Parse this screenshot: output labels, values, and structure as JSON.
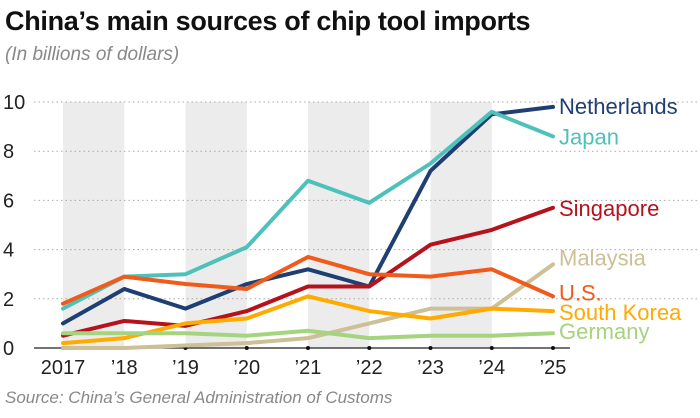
{
  "chart_data": {
    "type": "line",
    "title": "China’s main sources of chip tool imports",
    "subtitle": "(In billions of dollars)",
    "source": "Source: China’s General Administration of Customs",
    "x": [
      "2017",
      "’18",
      "’19",
      "’20",
      "’21",
      "’22",
      "’23",
      "’24",
      "’25"
    ],
    "ylim": [
      0,
      10
    ],
    "yticks": [
      0,
      2,
      4,
      6,
      8,
      10
    ],
    "grid": true,
    "series": [
      {
        "name": "Netherlands",
        "color": "#1f3f73",
        "values": [
          1.0,
          2.4,
          1.6,
          2.6,
          3.2,
          2.5,
          7.2,
          9.5,
          9.8
        ]
      },
      {
        "name": "Japan",
        "color": "#4fc1bb",
        "values": [
          1.6,
          2.9,
          3.0,
          4.1,
          6.8,
          5.9,
          7.5,
          9.6,
          8.6
        ]
      },
      {
        "name": "Singapore",
        "color": "#b5121b",
        "values": [
          0.5,
          1.1,
          0.9,
          1.5,
          2.5,
          2.5,
          4.2,
          4.8,
          5.7
        ]
      },
      {
        "name": "Malaysia",
        "color": "#cdbf96",
        "values": [
          0.0,
          0.0,
          0.1,
          0.2,
          0.4,
          1.0,
          1.6,
          1.6,
          3.4
        ]
      },
      {
        "name": "U.S.",
        "color": "#f05a1a",
        "values": [
          1.8,
          2.9,
          2.6,
          2.4,
          3.7,
          3.0,
          2.9,
          3.2,
          2.1
        ]
      },
      {
        "name": "South Korea",
        "color": "#ffaa00",
        "values": [
          0.2,
          0.4,
          1.0,
          1.2,
          2.1,
          1.5,
          1.2,
          1.6,
          1.5
        ]
      },
      {
        "name": "Germany",
        "color": "#a5d47f",
        "values": [
          0.6,
          0.6,
          0.6,
          0.5,
          0.7,
          0.4,
          0.5,
          0.5,
          0.6
        ]
      }
    ]
  }
}
